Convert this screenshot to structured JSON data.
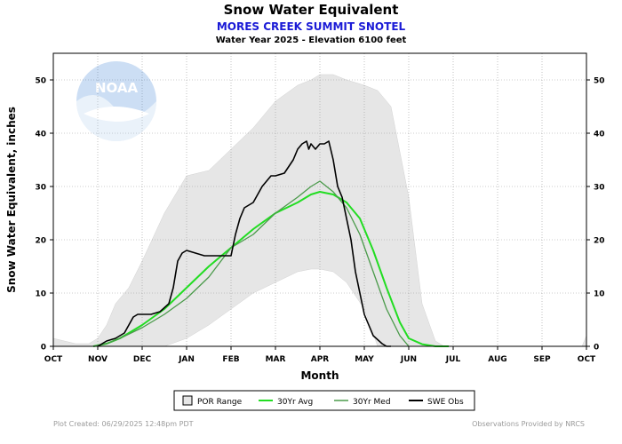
{
  "header": {
    "title": "Snow Water Equivalent",
    "station": "MORES CREEK SUMMIT SNOTEL",
    "subtitle": "Water Year 2025 -  Elevation 6100 feet"
  },
  "footer": {
    "created": "Plot Created: 06/29/2025 12:48pm PDT",
    "provider": "Observations Provided by NRCS"
  },
  "logo": {
    "icon": "noaa-logo",
    "text": "NOAA"
  },
  "colors": {
    "por": "#e6e6e6",
    "avg": "#22dd22",
    "med": "#4a9a4a",
    "obs": "#000000",
    "station": "#1a1ad6"
  },
  "chart_data": {
    "type": "line",
    "xlabel": "Month",
    "ylabel": "Snow Water Equivalent, inches",
    "categories": [
      "OCT",
      "NOV",
      "DEC",
      "JAN",
      "FEB",
      "MAR",
      "APR",
      "MAY",
      "JUN",
      "JUL",
      "AUG",
      "SEP",
      "OCT"
    ],
    "ylim": [
      0,
      55
    ],
    "yticks": [
      0,
      10,
      20,
      30,
      40,
      50
    ],
    "grid": true,
    "legend": "bottom-center",
    "x_units": "months since Oct 1",
    "legend_entries": [
      "POR Range",
      "30Yr Avg",
      "30Yr Med",
      "SWE Obs"
    ],
    "por_range": {
      "x": [
        0,
        0.5,
        0.8,
        1.0,
        1.2,
        1.4,
        1.7,
        2.0,
        2.5,
        3.0,
        3.5,
        4.0,
        4.5,
        5.0,
        5.5,
        5.8,
        6.0,
        6.3,
        6.6,
        7.0,
        7.3,
        7.6,
        8.0,
        8.3,
        8.6,
        8.8,
        9.0,
        11.9,
        12.0
      ],
      "min": [
        0,
        0,
        0,
        0,
        0,
        0,
        0,
        0,
        0,
        1.5,
        4,
        7,
        10,
        12,
        14,
        14.5,
        14.5,
        14,
        12,
        7,
        0,
        0,
        0,
        0,
        0,
        0,
        0,
        0,
        0
      ],
      "max": [
        1.5,
        0.5,
        0.5,
        1.5,
        4,
        8,
        11,
        16,
        25,
        32,
        33,
        37,
        41,
        46,
        49,
        50,
        51,
        51,
        50,
        49,
        48,
        45,
        28,
        8,
        1,
        0,
        0,
        0,
        2
      ]
    },
    "series": [
      {
        "name": "30Yr Avg",
        "x": [
          0.9,
          1.2,
          1.5,
          2.0,
          2.5,
          3.0,
          3.5,
          4.0,
          4.5,
          5.0,
          5.5,
          5.8,
          6.0,
          6.3,
          6.6,
          6.9,
          7.2,
          7.5,
          7.8,
          8.0,
          8.3,
          8.6,
          8.9
        ],
        "y": [
          0,
          0.5,
          1.5,
          4,
          7,
          11,
          15,
          18.5,
          22,
          25,
          27,
          28.5,
          29,
          28.5,
          27,
          24,
          18,
          11,
          4.5,
          1.5,
          0.4,
          0,
          0
        ]
      },
      {
        "name": "30Yr Med",
        "x": [
          0.9,
          1.2,
          1.5,
          2.0,
          2.5,
          3.0,
          3.5,
          4.0,
          4.5,
          5.0,
          5.5,
          5.8,
          6.0,
          6.3,
          6.6,
          6.9,
          7.2,
          7.5,
          7.8,
          8.0
        ],
        "y": [
          0,
          0.5,
          1.5,
          3.5,
          6,
          9,
          13,
          18.5,
          21,
          25,
          28,
          30,
          31,
          29,
          26,
          21,
          14,
          7,
          2,
          0
        ]
      },
      {
        "name": "SWE Obs",
        "x": [
          1.0,
          1.2,
          1.4,
          1.6,
          1.7,
          1.8,
          1.9,
          2.0,
          2.2,
          2.4,
          2.6,
          2.7,
          2.8,
          2.9,
          3.0,
          3.2,
          3.4,
          3.6,
          3.8,
          4.0,
          4.1,
          4.2,
          4.3,
          4.5,
          4.7,
          4.9,
          5.0,
          5.2,
          5.4,
          5.5,
          5.6,
          5.7,
          5.75,
          5.8,
          5.9,
          6.0,
          6.1,
          6.2,
          6.3,
          6.4,
          6.5,
          6.7,
          6.8,
          7.0,
          7.2,
          7.4,
          7.5,
          7.6
        ],
        "y": [
          0,
          1,
          1.5,
          2.5,
          4,
          5.5,
          6,
          6,
          6,
          6.5,
          8,
          11,
          16,
          17.5,
          18,
          17.5,
          17,
          17,
          17,
          17,
          21,
          24,
          26,
          27,
          30,
          32,
          32,
          32.5,
          35,
          37,
          38,
          38.5,
          37,
          38,
          37,
          38,
          38,
          38.5,
          35,
          30,
          28,
          20,
          14,
          6,
          2,
          0.5,
          0,
          0
        ]
      }
    ]
  }
}
